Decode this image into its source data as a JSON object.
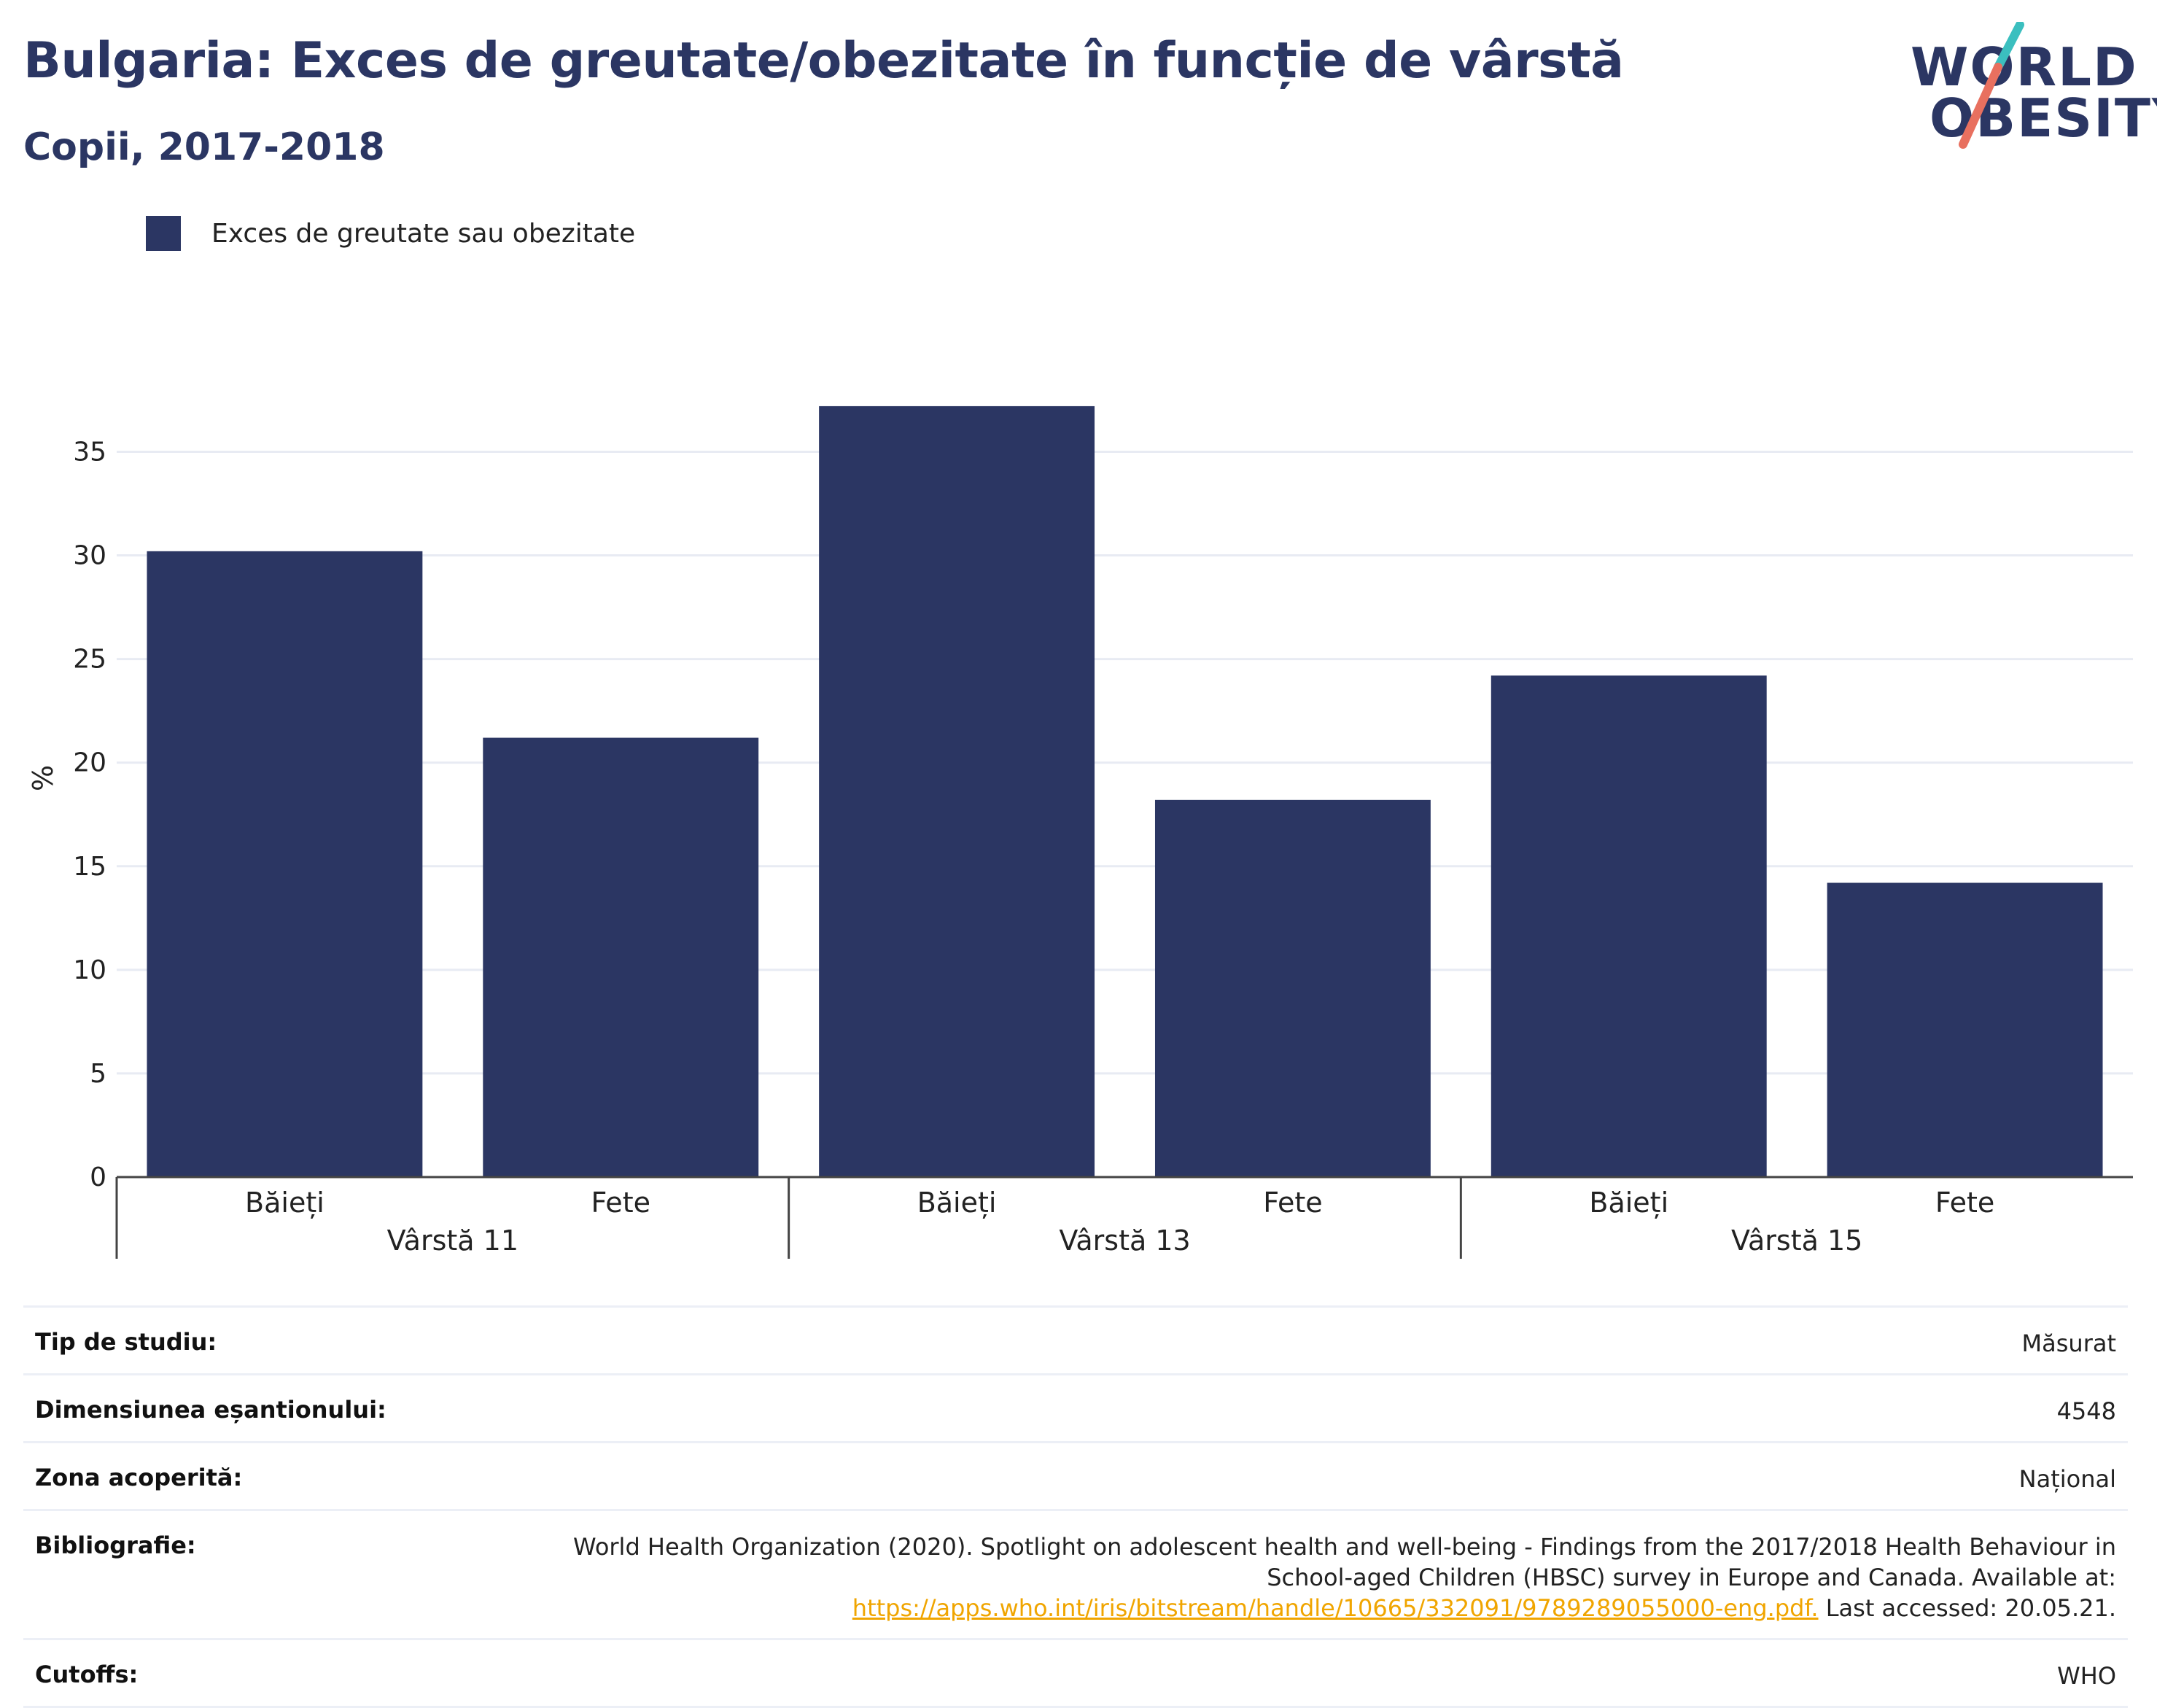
{
  "title": "Bulgaria: Exces de greutate/obezitate în funcție de vârstă",
  "subtitle": "Copii, 2017-2018",
  "logo": {
    "line1": "WORLD",
    "line2": "OBESITY",
    "colors": {
      "teal": "#3bbfbf",
      "coral": "#e8705f"
    }
  },
  "colors": {
    "bar": "#2b3663",
    "grid": "#e8ebf3",
    "axis": "#444444",
    "title": "#2b3663",
    "link": "#f0a500"
  },
  "chart_data": {
    "type": "bar",
    "legend": [
      "Exces de greutate sau obezitate"
    ],
    "legend_position": "top-left",
    "ylabel": "%",
    "ylim": [
      0,
      38.5
    ],
    "yticks": [
      0,
      5,
      10,
      15,
      20,
      25,
      30,
      35
    ],
    "grid": true,
    "groups": [
      {
        "label": "Vârstă 11",
        "bars": [
          {
            "category": "Băieți",
            "value": 30.2
          },
          {
            "category": "Fete",
            "value": 21.2
          }
        ]
      },
      {
        "label": "Vârstă 13",
        "bars": [
          {
            "category": "Băieți",
            "value": 37.2
          },
          {
            "category": "Fete",
            "value": 18.2
          }
        ]
      },
      {
        "label": "Vârstă 15",
        "bars": [
          {
            "category": "Băieți",
            "value": 24.2
          },
          {
            "category": "Fete",
            "value": 14.2
          }
        ]
      }
    ]
  },
  "info": {
    "study_type": {
      "label": "Tip de studiu:",
      "value": "Măsurat"
    },
    "sample_size": {
      "label": "Dimensiunea eșantionului:",
      "value": "4548"
    },
    "coverage": {
      "label": "Zona acoperită:",
      "value": "Național"
    },
    "bibliography": {
      "label": "Bibliografie:",
      "line1": "World Health Organization (2020). Spotlight on adolescent health and well-being - Findings from the 2017/2018 Health Behaviour in",
      "line2": "School-aged Children (HBSC) survey in Europe and Canada. Available at:",
      "link": "https://apps.who.int/iris/bitstream/handle/10665/332091/9789289055000-eng.pdf.",
      "after": " Last accessed: 20.05.21."
    },
    "cutoffs": {
      "label": "Cutoffs:",
      "value": "WHO"
    }
  }
}
